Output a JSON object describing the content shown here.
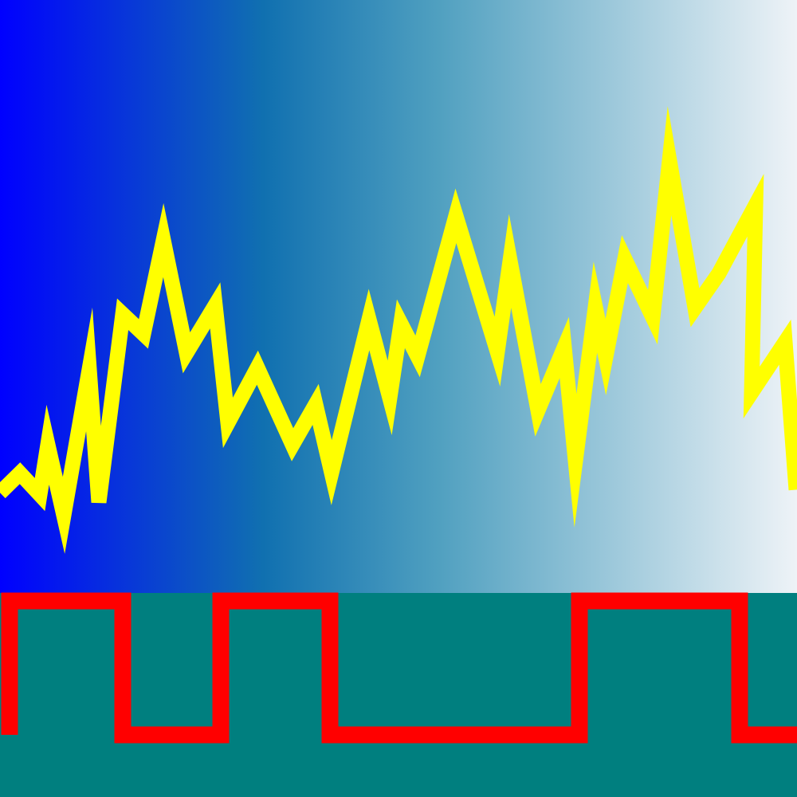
{
  "chart_data": [
    {
      "type": "line",
      "panel": "upper",
      "background": "horizontal-gradient",
      "background_colors": [
        "#0000ff",
        "#1070b0",
        "#50a0c0",
        "#eef3f7"
      ],
      "line_color": "#ffff00",
      "grid": false,
      "legend": "none",
      "title": "",
      "xlabel": "",
      "ylabel": "",
      "xlim": [
        0,
        100
      ],
      "ylim": [
        0,
        100
      ],
      "series": [
        {
          "x": [
            0,
            2.5,
            5,
            6,
            8,
            11.2,
            12.4,
            15.4,
            18,
            20.5,
            23.4,
            27,
            28.6,
            32.3,
            36.7,
            39.6,
            41.6,
            46.3,
            48.9,
            50.3,
            52.4,
            57.2,
            62.4,
            64,
            67.5,
            70.8,
            72.2,
            74.7,
            76,
            78.4,
            81.9,
            84,
            87.2,
            90.2,
            94.8,
            94.3,
            98.5,
            99.9
          ],
          "y": [
            16.9,
            20.2,
            16.6,
            25,
            13.1,
            37.7,
            15.3,
            47,
            43.7,
            59.5,
            40.5,
            48.5,
            28.7,
            38,
            25,
            31.8,
            20.3,
            46.1,
            32.9,
            45.4,
            39.9,
            63.6,
            40.7,
            56,
            30.8,
            41.4,
            22.3,
            48.2,
            39.8,
            56.3,
            46.5,
            72.9,
            48.1,
            53.9,
            65.4,
            33.8,
            42.3,
            17.4
          ]
        }
      ]
    },
    {
      "type": "line",
      "step": true,
      "panel": "lower",
      "background": "#007f7f",
      "line_color": "#ff0000",
      "grid": false,
      "legend": "none",
      "title": "",
      "xlabel": "",
      "ylabel": "",
      "xlim": [
        0,
        100
      ],
      "ylim": [
        0,
        1
      ],
      "series": [
        {
          "x": [
            1.2,
            15.4,
            27.7,
            41.4,
            72.7,
            92.8,
            100
          ],
          "y": [
            1,
            0,
            1,
            0,
            1,
            0,
            0
          ],
          "start_y": 0
        }
      ]
    }
  ]
}
